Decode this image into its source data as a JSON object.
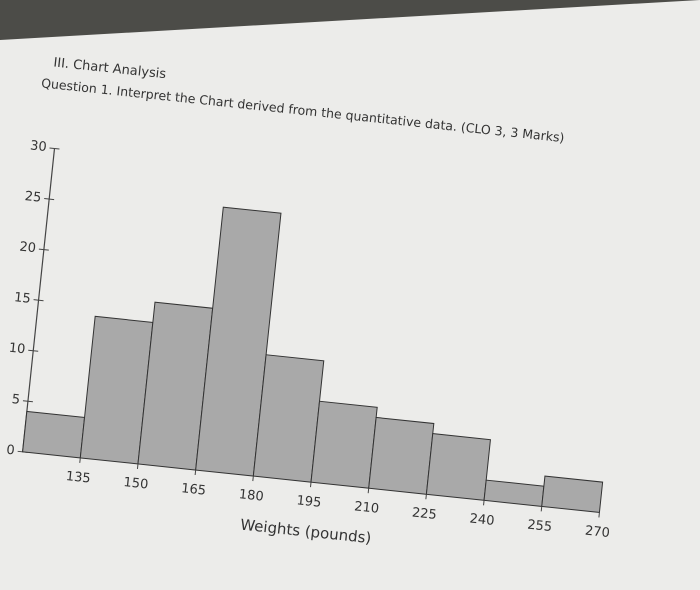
{
  "header": {
    "section": "III. Chart Analysis",
    "question": "Question 1. Interpret the Chart derived from the quantitative data. (CLO 3, 3 Marks)"
  },
  "chart_data": {
    "type": "histogram",
    "xlabel": "Weights (pounds)",
    "bins": [
      120,
      135,
      150,
      165,
      180,
      195,
      210,
      225,
      240,
      255,
      270
    ],
    "values": [
      4,
      14,
      16,
      26,
      12,
      8,
      7,
      6,
      2,
      3
    ],
    "color": "#a9a9a9",
    "xlim": [
      120,
      270
    ],
    "xticks": [
      135,
      150,
      165,
      180,
      195,
      210,
      225,
      240,
      255,
      270
    ],
    "ylim": [
      0,
      30
    ],
    "yticks": [
      0,
      5,
      10,
      15,
      20,
      25,
      30
    ]
  }
}
